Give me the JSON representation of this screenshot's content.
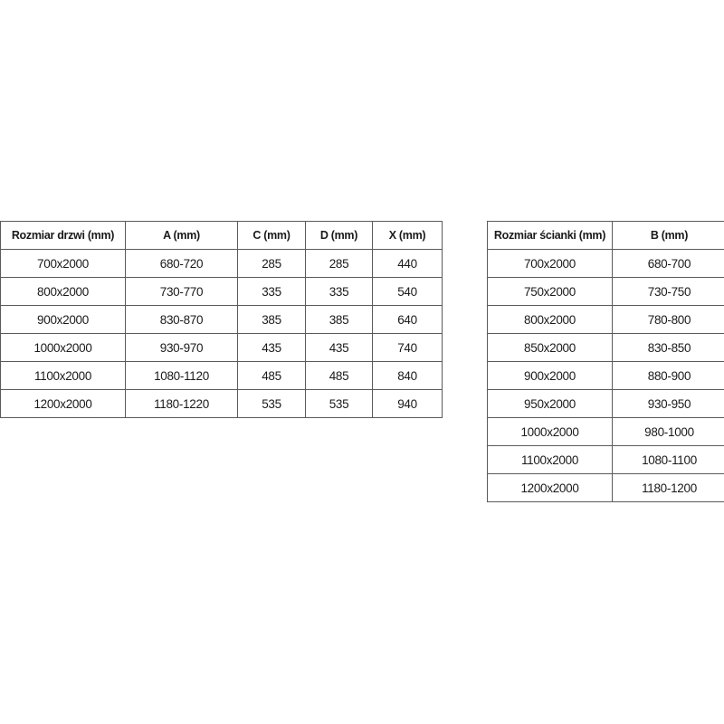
{
  "door_table": {
    "headers": [
      "Rozmiar drzwi (mm)",
      "A (mm)",
      "C (mm)",
      "D (mm)",
      "X (mm)"
    ],
    "rows": [
      [
        "700x2000",
        "680-720",
        "285",
        "285",
        "440"
      ],
      [
        "800x2000",
        "730-770",
        "335",
        "335",
        "540"
      ],
      [
        "900x2000",
        "830-870",
        "385",
        "385",
        "640"
      ],
      [
        "1000x2000",
        "930-970",
        "435",
        "435",
        "740"
      ],
      [
        "1100x2000",
        "1080-1120",
        "485",
        "485",
        "840"
      ],
      [
        "1200x2000",
        "1180-1220",
        "535",
        "535",
        "940"
      ]
    ]
  },
  "wall_table": {
    "headers": [
      "Rozmiar ścianki (mm)",
      "B (mm)"
    ],
    "rows": [
      [
        "700x2000",
        "680-700"
      ],
      [
        "750x2000",
        "730-750"
      ],
      [
        "800x2000",
        "780-800"
      ],
      [
        "850x2000",
        "830-850"
      ],
      [
        "900x2000",
        "880-900"
      ],
      [
        "950x2000",
        "930-950"
      ],
      [
        "1000x2000",
        "980-1000"
      ],
      [
        "1100x2000",
        "1080-1100"
      ],
      [
        "1200x2000",
        "1180-1200"
      ]
    ]
  }
}
